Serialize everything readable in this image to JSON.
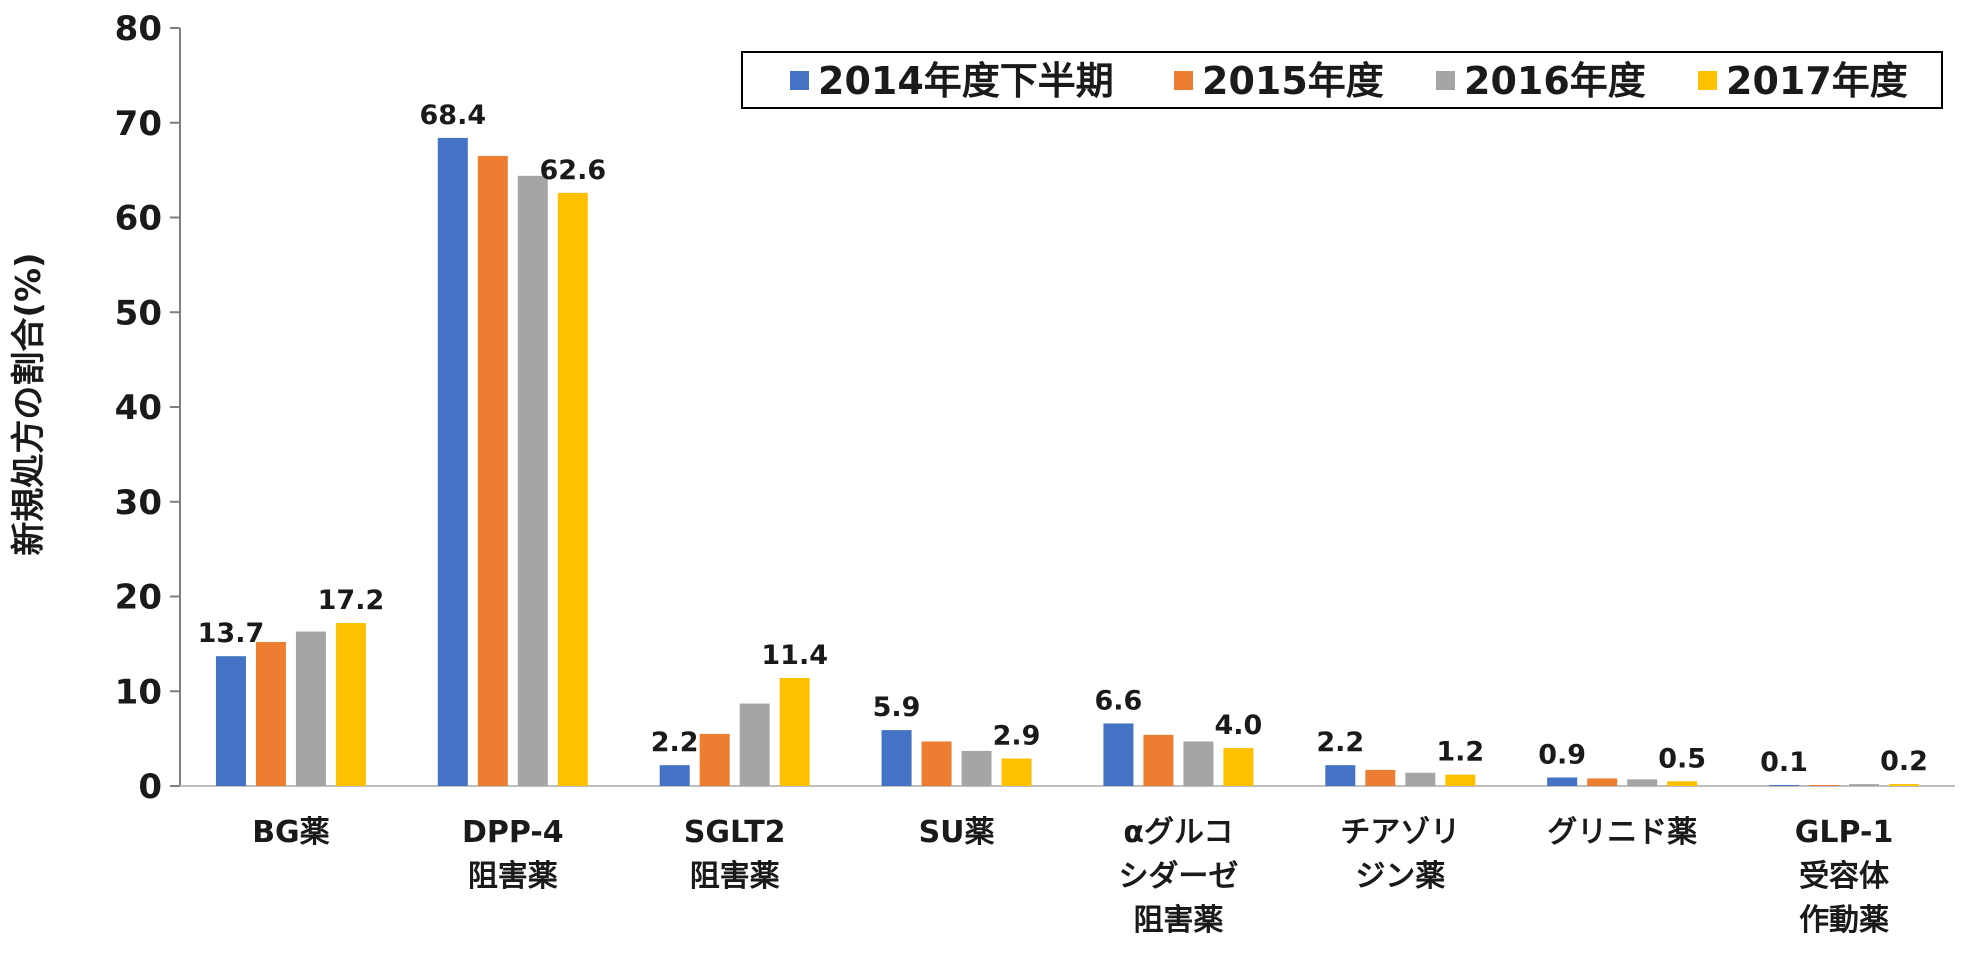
{
  "chart_data": {
    "type": "bar",
    "ylabel": "新規処方の割合(%)",
    "ylim": [
      0,
      80
    ],
    "yticks": [
      0,
      10,
      20,
      30,
      40,
      50,
      60,
      70,
      80
    ],
    "grid": false,
    "legend_position": "top-right",
    "categories": [
      [
        "BG薬"
      ],
      [
        "DPP-4",
        "阻害薬"
      ],
      [
        "SGLT2",
        "阻害薬"
      ],
      [
        "SU薬"
      ],
      [
        "αグルコ",
        "シダーゼ",
        "阻害薬"
      ],
      [
        "チアゾリ",
        "ジン薬"
      ],
      [
        "グリニド薬"
      ],
      [
        "GLP-1",
        "受容体",
        "作動薬"
      ]
    ],
    "series": [
      {
        "name": "2014年度下半期",
        "color": "#4472C4",
        "values": [
          13.7,
          68.4,
          2.2,
          5.9,
          6.6,
          2.2,
          0.9,
          0.1
        ]
      },
      {
        "name": "2015年度",
        "color": "#ED7D31",
        "values": [
          15.2,
          66.5,
          5.5,
          4.7,
          5.4,
          1.7,
          0.8,
          0.1
        ]
      },
      {
        "name": "2016年度",
        "color": "#A5A5A5",
        "values": [
          16.3,
          64.4,
          8.7,
          3.7,
          4.7,
          1.4,
          0.7,
          0.2
        ]
      },
      {
        "name": "2017年度",
        "color": "#FFC000",
        "values": [
          17.2,
          62.6,
          11.4,
          2.9,
          4.0,
          1.2,
          0.5,
          0.2
        ]
      }
    ],
    "data_labels": [
      {
        "category": 0,
        "series": 0,
        "text": "13.7"
      },
      {
        "category": 0,
        "series": 3,
        "text": "17.2"
      },
      {
        "category": 1,
        "series": 0,
        "text": "68.4"
      },
      {
        "category": 1,
        "series": 3,
        "text": "62.6"
      },
      {
        "category": 2,
        "series": 0,
        "text": "2.2"
      },
      {
        "category": 2,
        "series": 3,
        "text": "11.4"
      },
      {
        "category": 3,
        "series": 0,
        "text": "5.9"
      },
      {
        "category": 3,
        "series": 3,
        "text": "2.9"
      },
      {
        "category": 4,
        "series": 0,
        "text": "6.6"
      },
      {
        "category": 4,
        "series": 3,
        "text": "4.0"
      },
      {
        "category": 5,
        "series": 0,
        "text": "2.2"
      },
      {
        "category": 5,
        "series": 3,
        "text": "1.2"
      },
      {
        "category": 6,
        "series": 0,
        "text": "0.9"
      },
      {
        "category": 6,
        "series": 3,
        "text": "0.5"
      },
      {
        "category": 7,
        "series": 0,
        "text": "0.1"
      },
      {
        "category": 7,
        "series": 3,
        "text": "0.2"
      }
    ]
  }
}
